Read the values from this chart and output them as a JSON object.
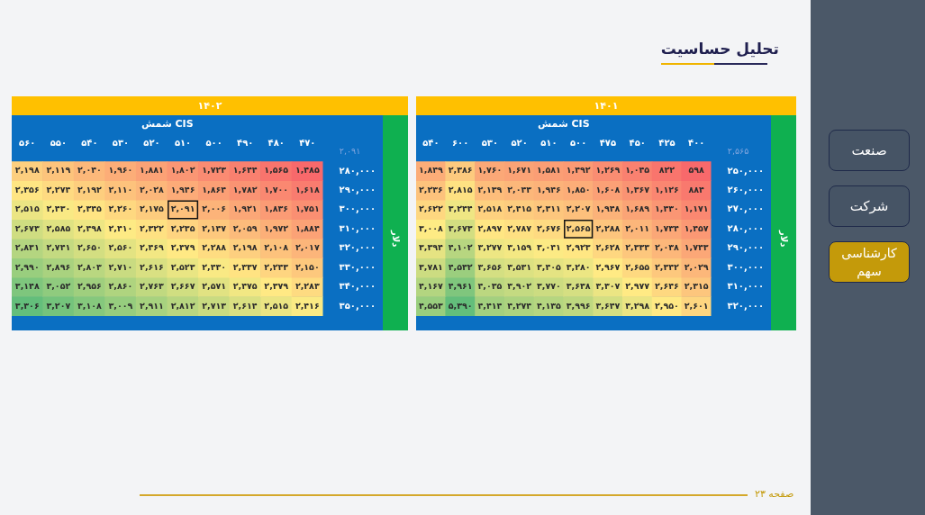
{
  "chart_data": [
    {
      "type": "heatmap",
      "title": "۱۴۰۱",
      "xlabel": "شمش CIS",
      "ylabel": "دلار",
      "categories": [
        "۵۴۰",
        "۶۰۰",
        "۵۳۰",
        "۵۲۰",
        "۵۱۰",
        "۵۰۰",
        "۴۷۵",
        "۴۵۰",
        "۴۲۵",
        "۴۰۰"
      ],
      "y_categories": [
        "۲۵۰,۰۰۰",
        "۲۶۰,۰۰۰",
        "۲۷۰,۰۰۰",
        "۲۸۰,۰۰۰",
        "۲۹۰,۰۰۰",
        "۳۰۰,۰۰۰",
        "۳۱۰,۰۰۰",
        "۳۲۰,۰۰۰"
      ],
      "cells": [
        [
          1849,
          2386,
          1760,
          1671,
          1581,
          1492,
          1269,
          1045,
          822,
          598
        ],
        [
          2236,
          2815,
          2139,
          2043,
          1946,
          1850,
          1608,
          1367,
          1126,
          884
        ],
        [
          2622,
          3244,
          2518,
          2415,
          2311,
          2207,
          1948,
          1689,
          1430,
          1171
        ],
        [
          3008,
          3673,
          2897,
          2787,
          2676,
          2565,
          2288,
          2011,
          1734,
          1457
        ],
        [
          3394,
          4102,
          3277,
          3159,
          3041,
          2923,
          2628,
          2333,
          2038,
          1743
        ],
        [
          3781,
          4532,
          3656,
          3531,
          3405,
          3280,
          2967,
          2655,
          2342,
          2029
        ],
        [
          4167,
          4961,
          4035,
          3902,
          3770,
          3638,
          3307,
          2977,
          2646,
          2315
        ],
        [
          4553,
          5390,
          4414,
          4274,
          4135,
          3996,
          3647,
          3298,
          2950,
          2601
        ]
      ],
      "cell_labels": [
        [
          "۱,۸۴۹",
          "۲,۳۸۶",
          "۱,۷۶۰",
          "۱,۶۷۱",
          "۱,۵۸۱",
          "۱,۴۹۲",
          "۱,۲۶۹",
          "۱,۰۴۵",
          "۸۲۲",
          "۵۹۸"
        ],
        [
          "۲,۲۳۶",
          "۲,۸۱۵",
          "۲,۱۳۹",
          "۲,۰۴۳",
          "۱,۹۴۶",
          "۱,۸۵۰",
          "۱,۶۰۸",
          "۱,۳۶۷",
          "۱,۱۲۶",
          "۸۸۴"
        ],
        [
          "۲,۶۲۲",
          "۳,۲۴۴",
          "۲,۵۱۸",
          "۲,۴۱۵",
          "۲,۳۱۱",
          "۲,۲۰۷",
          "۱,۹۴۸",
          "۱,۶۸۹",
          "۱,۴۳۰",
          "۱,۱۷۱"
        ],
        [
          "۳,۰۰۸",
          "۳,۶۷۳",
          "۲,۸۹۷",
          "۲,۷۸۷",
          "۲,۶۷۶",
          "۲,۵۶۵",
          "۲,۲۸۸",
          "۲,۰۱۱",
          "۱,۷۳۴",
          "۱,۴۵۷"
        ],
        [
          "۳,۳۹۴",
          "۴,۱۰۲",
          "۳,۲۷۷",
          "۳,۱۵۹",
          "۳,۰۴۱",
          "۲,۹۲۳",
          "۲,۶۲۸",
          "۲,۳۳۳",
          "۲,۰۳۸",
          "۱,۷۴۳"
        ],
        [
          "۳,۷۸۱",
          "۴,۵۳۲",
          "۳,۶۵۶",
          "۳,۵۳۱",
          "۳,۴۰۵",
          "۳,۲۸۰",
          "۲,۹۶۷",
          "۲,۶۵۵",
          "۲,۳۴۲",
          "۲,۰۲۹"
        ],
        [
          "۴,۱۶۷",
          "۴,۹۶۱",
          "۴,۰۳۵",
          "۳,۹۰۲",
          "۳,۷۷۰",
          "۳,۶۳۸",
          "۳,۳۰۷",
          "۲,۹۷۷",
          "۲,۶۴۶",
          "۲,۳۱۵"
        ],
        [
          "۴,۵۵۳",
          "۵,۳۹۰",
          "۴,۴۱۴",
          "۴,۲۷۴",
          "۴,۱۳۵",
          "۳,۹۹۶",
          "۳,۶۴۷",
          "۳,۲۹۸",
          "۲,۹۵۰",
          "۲,۶۰۱"
        ]
      ],
      "annotations": [
        "تحلیل حساسیت",
        "۲,۵۶۵",
        "صنعت",
        "شرکت",
        "کارشناسی سهم",
        "صفحه ۲۳"
      ]
    },
    {
      "type": "heatmap",
      "title": "۱۴۰۲",
      "xlabel": "شمش CIS",
      "ylabel": "دلار",
      "categories": [
        "۵۶۰",
        "۵۵۰",
        "۵۴۰",
        "۵۳۰",
        "۵۲۰",
        "۵۱۰",
        "۵۰۰",
        "۴۹۰",
        "۴۸۰",
        "۴۷۰"
      ],
      "y_categories": [
        "۲۸۰,۰۰۰",
        "۲۹۰,۰۰۰",
        "۳۰۰,۰۰۰",
        "۳۱۰,۰۰۰",
        "۳۲۰,۰۰۰",
        "۳۳۰,۰۰۰",
        "۳۴۰,۰۰۰",
        "۳۵۰,۰۰۰"
      ],
      "cells": [
        [
          2198,
          2119,
          2040,
          1960,
          1881,
          1802,
          1723,
          1644,
          1565,
          1485
        ],
        [
          2356,
          2274,
          2192,
          2110,
          2028,
          1946,
          1864,
          1782,
          1700,
          1618
        ],
        [
          2515,
          2430,
          2345,
          2260,
          2175,
          2091,
          2006,
          1921,
          1836,
          1751
        ],
        [
          2673,
          2585,
          2498,
          2410,
          2322,
          2235,
          2147,
          2059,
          1972,
          1884
        ],
        [
          2831,
          2741,
          2650,
          2560,
          2469,
          2379,
          2288,
          2198,
          2108,
          2017
        ],
        [
          2990,
          2896,
          2803,
          2710,
          2616,
          2523,
          2430,
          2337,
          2243,
          2150
        ],
        [
          3148,
          3052,
          2956,
          2860,
          2763,
          2667,
          2571,
          2475,
          2379,
          2283
        ],
        [
          3306,
          3207,
          3108,
          3009,
          2911,
          2812,
          2713,
          2614,
          2515,
          2416
        ]
      ],
      "cell_labels": [
        [
          "۲,۱۹۸",
          "۲,۱۱۹",
          "۲,۰۴۰",
          "۱,۹۶۰",
          "۱,۸۸۱",
          "۱,۸۰۲",
          "۱,۷۲۳",
          "۱,۶۴۴",
          "۱,۵۶۵",
          "۱,۴۸۵"
        ],
        [
          "۲,۳۵۶",
          "۲,۲۷۴",
          "۲,۱۹۲",
          "۲,۱۱۰",
          "۲,۰۲۸",
          "۱,۹۴۶",
          "۱,۸۶۴",
          "۱,۷۸۲",
          "۱,۷۰۰",
          "۱,۶۱۸"
        ],
        [
          "۲,۵۱۵",
          "۲,۴۳۰",
          "۲,۳۴۵",
          "۲,۲۶۰",
          "۲,۱۷۵",
          "۲,۰۹۱",
          "۲,۰۰۶",
          "۱,۹۲۱",
          "۱,۸۳۶",
          "۱,۷۵۱"
        ],
        [
          "۲,۶۷۳",
          "۲,۵۸۵",
          "۲,۴۹۸",
          "۲,۴۱۰",
          "۲,۳۲۲",
          "۲,۲۳۵",
          "۲,۱۴۷",
          "۲,۰۵۹",
          "۱,۹۷۲",
          "۱,۸۸۴"
        ],
        [
          "۲,۸۳۱",
          "۲,۷۴۱",
          "۲,۶۵۰",
          "۲,۵۶۰",
          "۲,۴۶۹",
          "۲,۳۷۹",
          "۲,۲۸۸",
          "۲,۱۹۸",
          "۲,۱۰۸",
          "۲,۰۱۷"
        ],
        [
          "۲,۹۹۰",
          "۲,۸۹۶",
          "۲,۸۰۳",
          "۲,۷۱۰",
          "۲,۶۱۶",
          "۲,۵۲۳",
          "۲,۴۳۰",
          "۲,۳۳۷",
          "۲,۲۴۳",
          "۲,۱۵۰"
        ],
        [
          "۳,۱۴۸",
          "۳,۰۵۲",
          "۲,۹۵۶",
          "۲,۸۶۰",
          "۲,۷۶۳",
          "۲,۶۶۷",
          "۲,۵۷۱",
          "۲,۴۷۵",
          "۲,۳۷۹",
          "۲,۲۸۳"
        ],
        [
          "۳,۳۰۶",
          "۳,۲۰۷",
          "۳,۱۰۸",
          "۳,۰۰۹",
          "۲,۹۱۱",
          "۲,۸۱۲",
          "۲,۷۱۳",
          "۲,۶۱۴",
          "۲,۵۱۵",
          "۲,۴۱۶"
        ]
      ],
      "annotations": [
        "۲,۰۹۱"
      ]
    }
  ]
}
